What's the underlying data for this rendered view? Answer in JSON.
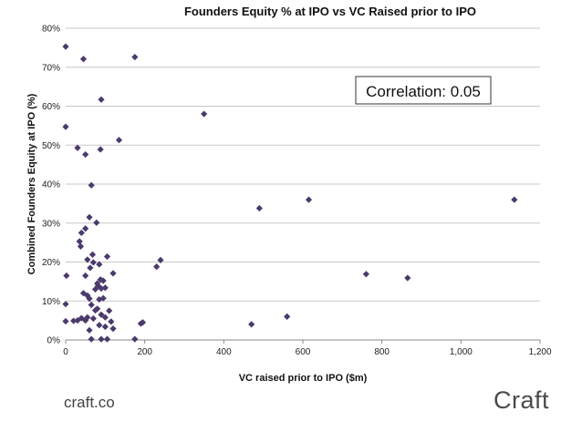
{
  "chart_data": {
    "type": "scatter",
    "title": "Founders Equity % at IPO vs VC Raised prior to IPO",
    "xlabel": "VC raised prior to IPO ($m)",
    "ylabel": "Combined Founders Equity at IPO (%)",
    "xlim": [
      0,
      1200
    ],
    "ylim": [
      0,
      80
    ],
    "x_ticks": [
      0,
      200,
      400,
      600,
      800,
      1000,
      1200
    ],
    "x_tick_labels": [
      "0",
      "200",
      "400",
      "600",
      "800",
      "1,000",
      "1,200"
    ],
    "y_ticks": [
      0,
      10,
      20,
      30,
      40,
      50,
      60,
      70,
      80
    ],
    "y_tick_labels": [
      "0%",
      "10%",
      "20%",
      "30%",
      "40%",
      "50%",
      "60%",
      "70%",
      "80%"
    ],
    "grid": true,
    "marker_color": "#4b3a6b",
    "annotation": "Correlation: 0.05",
    "points": [
      [
        0,
        75.3
      ],
      [
        0,
        54.7
      ],
      [
        0,
        9.2
      ],
      [
        0,
        4.8
      ],
      [
        2,
        16.5
      ],
      [
        45,
        72.1
      ],
      [
        175,
        72.6
      ],
      [
        90,
        61.7
      ],
      [
        350,
        58.0
      ],
      [
        135,
        51.3
      ],
      [
        30,
        49.3
      ],
      [
        50,
        47.6
      ],
      [
        88,
        48.9
      ],
      [
        65,
        39.7
      ],
      [
        615,
        36.0
      ],
      [
        1135,
        36.0
      ],
      [
        490,
        33.8
      ],
      [
        78,
        30.1
      ],
      [
        60,
        31.5
      ],
      [
        50,
        28.6
      ],
      [
        40,
        27.5
      ],
      [
        35,
        25.3
      ],
      [
        38,
        24.0
      ],
      [
        240,
        20.5
      ],
      [
        230,
        18.8
      ],
      [
        105,
        21.4
      ],
      [
        68,
        21.9
      ],
      [
        55,
        20.6
      ],
      [
        70,
        19.9
      ],
      [
        85,
        19.4
      ],
      [
        62,
        18.5
      ],
      [
        120,
        17.1
      ],
      [
        50,
        16.5
      ],
      [
        760,
        16.9
      ],
      [
        865,
        15.9
      ],
      [
        88,
        15.5
      ],
      [
        95,
        15.2
      ],
      [
        80,
        14.5
      ],
      [
        82,
        13.9
      ],
      [
        100,
        13.4
      ],
      [
        90,
        13.2
      ],
      [
        75,
        13.0
      ],
      [
        45,
        12.0
      ],
      [
        55,
        11.4
      ],
      [
        60,
        10.6
      ],
      [
        85,
        10.4
      ],
      [
        95,
        10.7
      ],
      [
        110,
        7.5
      ],
      [
        65,
        9.0
      ],
      [
        75,
        7.6
      ],
      [
        90,
        6.5
      ],
      [
        100,
        5.8
      ],
      [
        70,
        5.5
      ],
      [
        50,
        5.0
      ],
      [
        30,
        5.0
      ],
      [
        20,
        4.9
      ],
      [
        115,
        4.7
      ],
      [
        85,
        3.8
      ],
      [
        120,
        2.9
      ],
      [
        60,
        2.5
      ],
      [
        190,
        4.2
      ],
      [
        195,
        4.5
      ],
      [
        470,
        4.0
      ],
      [
        560,
        6.0
      ],
      [
        65,
        0.2
      ],
      [
        90,
        0.2
      ],
      [
        105,
        0.2
      ],
      [
        175,
        0.2
      ],
      [
        40,
        5.6
      ],
      [
        80,
        8.0
      ],
      [
        55,
        5.8
      ],
      [
        100,
        3.4
      ]
    ]
  },
  "footer": {
    "left": "craft.co",
    "right": "Craft"
  }
}
